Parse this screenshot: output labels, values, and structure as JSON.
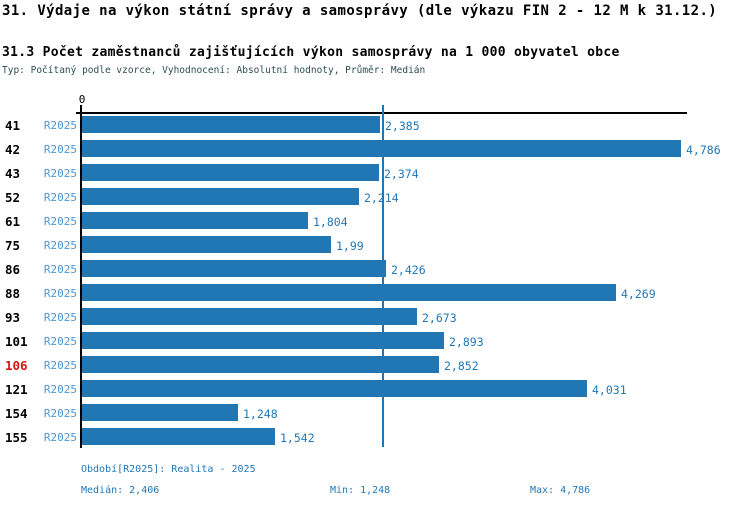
{
  "header": {
    "title1": "31. Výdaje na výkon státní správy a samosprávy (dle výkazu FIN 2 - 12 M k 31.12.)",
    "title2": "31.3 Počet zaměstnanců zajišťujících výkon samosprávy na 1 000 obyvatel obce",
    "meta": "Typ: Počítaný podle vzorce, Vyhodnocení: Absolutní hodnoty, Průměr: Medián"
  },
  "axis": {
    "zero_label": "0"
  },
  "chart_data": {
    "type": "bar",
    "orientation": "horizontal",
    "title": "31.3 Počet zaměstnanců zajišťujících výkon samosprávy na 1 000 obyvatel obce",
    "categories": [
      "41",
      "42",
      "43",
      "52",
      "61",
      "75",
      "86",
      "88",
      "93",
      "101",
      "106",
      "121",
      "154",
      "155"
    ],
    "series_label": "R2025",
    "values": [
      2.385,
      4.786,
      2.374,
      2.214,
      1.804,
      1.99,
      2.426,
      4.269,
      2.673,
      2.893,
      2.852,
      4.031,
      1.248,
      1.542
    ],
    "value_labels": [
      "2,385",
      "4,786",
      "2,374",
      "2,214",
      "1,804",
      "1,99",
      "2,426",
      "4,269",
      "2,673",
      "2,893",
      "2,852",
      "4,031",
      "1,248",
      "1,542"
    ],
    "highlighted_category": "106",
    "xlim": [
      0,
      4.786
    ],
    "median": 2.406,
    "grid": false,
    "bar_color": "#2077b4",
    "median_line_color": "#2077b4",
    "value_label_color": "#2278b8",
    "series_label_color": "#4d95d0",
    "highlight_color": "#d81414"
  },
  "footer": {
    "period": "Období[R2025]: Realita - 2025",
    "median": "Medián: 2,406",
    "min": "Min: 1,248",
    "max": "Max: 4,786"
  }
}
